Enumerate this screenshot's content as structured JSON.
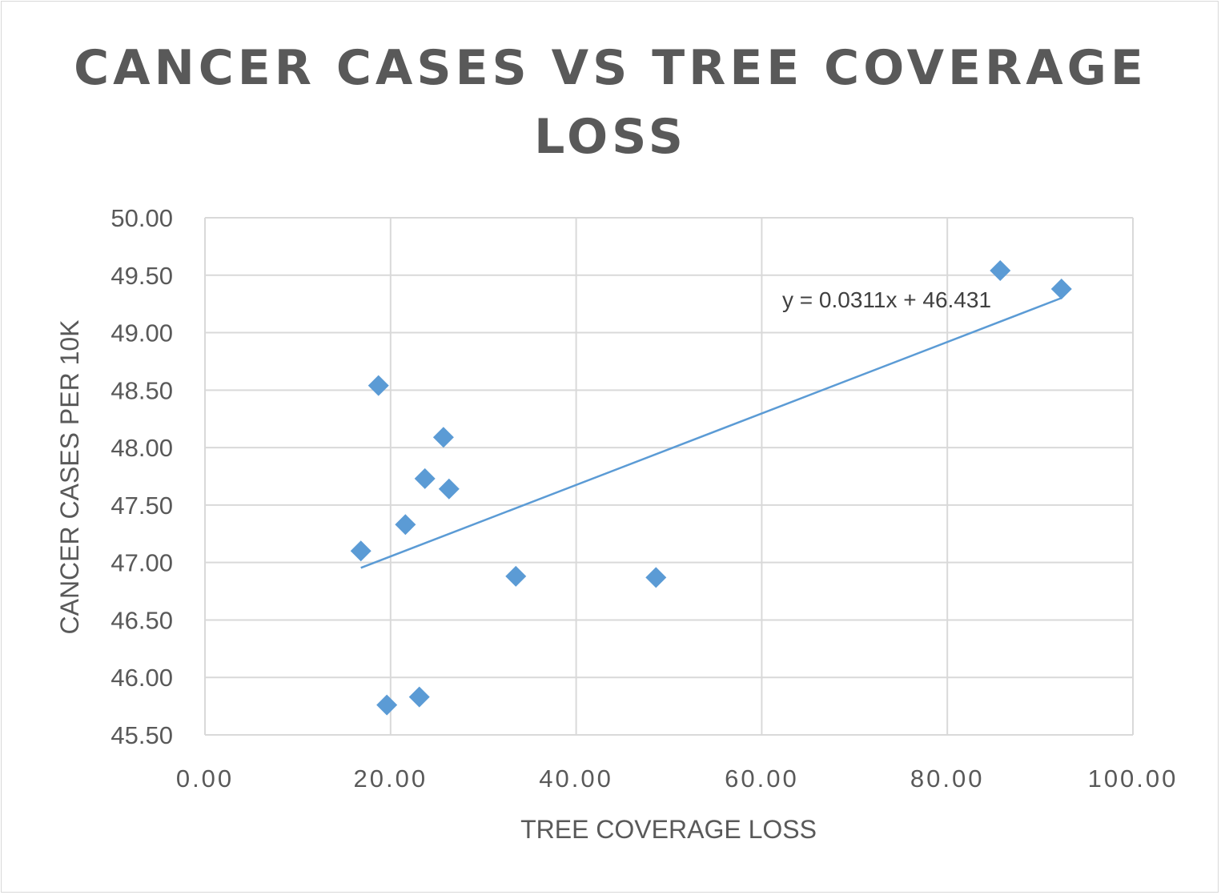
{
  "chart_data": {
    "type": "scatter",
    "title": "CANCER CASES VS TREE COVERAGE LOSS",
    "xlabel": "TREE COVERAGE LOSS",
    "ylabel": "CANCER CASES PER 10K",
    "xlim": [
      0,
      100
    ],
    "ylim": [
      45.5,
      50
    ],
    "x_ticks": [
      "0.00",
      "20.00",
      "40.00",
      "60.00",
      "80.00",
      "100.00"
    ],
    "y_ticks": [
      "45.50",
      "46.00",
      "46.50",
      "47.00",
      "47.50",
      "48.00",
      "48.50",
      "49.00",
      "49.50",
      "50.00"
    ],
    "grid": true,
    "legend": "none",
    "marker": "diamond",
    "color": "#5b9bd5",
    "points": [
      {
        "x": 16.8,
        "y": 47.1
      },
      {
        "x": 18.7,
        "y": 48.54
      },
      {
        "x": 19.6,
        "y": 45.76
      },
      {
        "x": 21.6,
        "y": 47.33
      },
      {
        "x": 23.1,
        "y": 45.83
      },
      {
        "x": 23.7,
        "y": 47.73
      },
      {
        "x": 25.7,
        "y": 48.09
      },
      {
        "x": 26.3,
        "y": 47.64
      },
      {
        "x": 33.5,
        "y": 46.88
      },
      {
        "x": 48.6,
        "y": 46.87
      },
      {
        "x": 85.7,
        "y": 49.54
      },
      {
        "x": 92.3,
        "y": 49.38
      }
    ],
    "trendline": {
      "type": "linear",
      "slope": 0.0311,
      "intercept": 46.431,
      "x_range": [
        16.8,
        92.3
      ],
      "equation": "y = 0.0311x + 46.431"
    }
  }
}
